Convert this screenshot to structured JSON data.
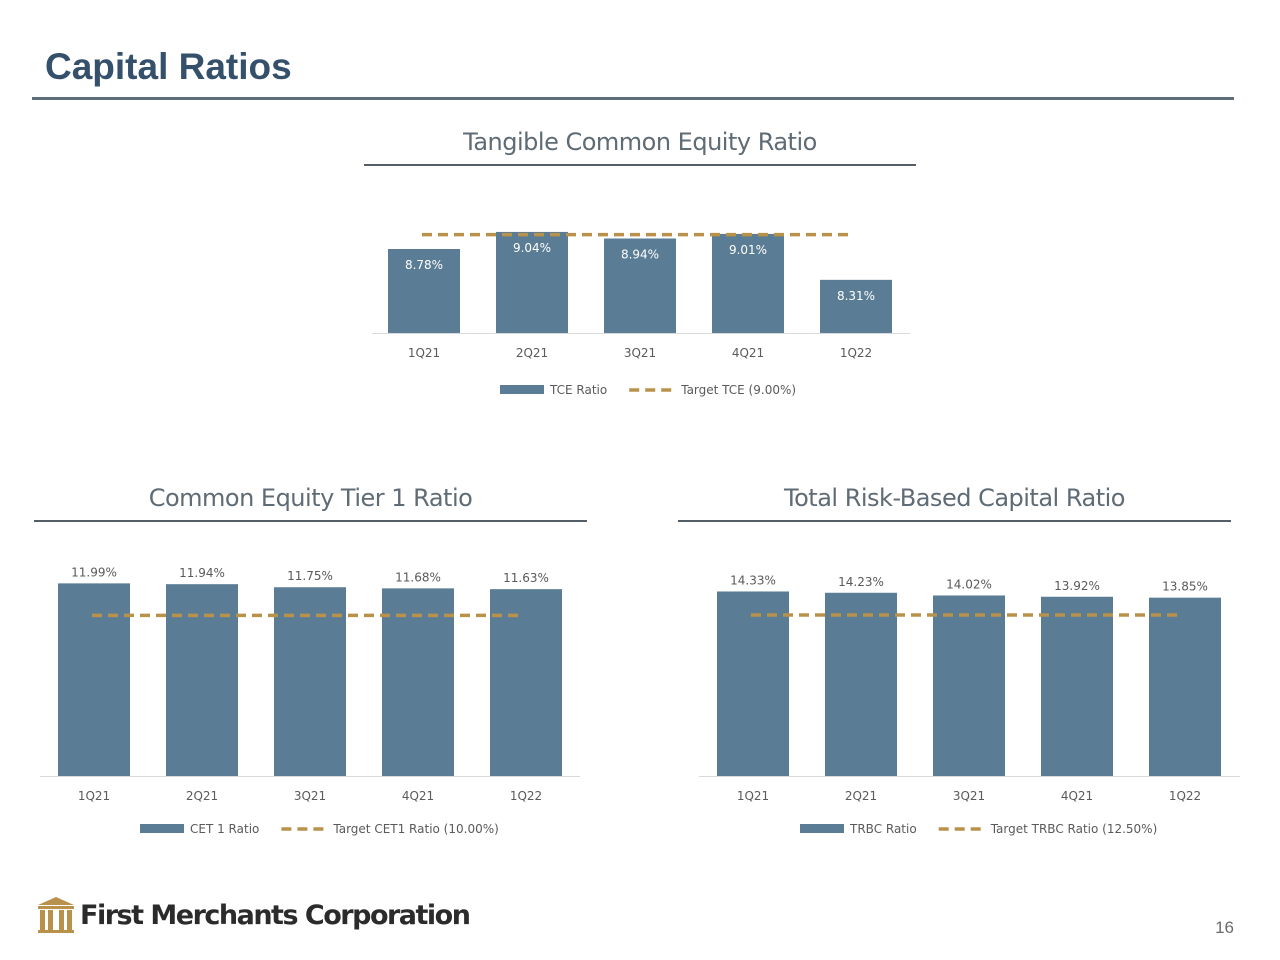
{
  "page": {
    "title": "Capital Ratios",
    "company": "First Merchants Corporation",
    "page_number": "16"
  },
  "colors": {
    "bar": "#5a7d95",
    "target": "#b8924a",
    "title": "#34506b"
  },
  "chart_data": [
    {
      "type": "bar",
      "title": "Tangible Common Equity Ratio",
      "categories": [
        "1Q21",
        "2Q21",
        "3Q21",
        "4Q21",
        "1Q22"
      ],
      "series": [
        {
          "name": "TCE Ratio",
          "values": [
            8.78,
            9.04,
            8.94,
            9.01,
            8.31
          ]
        }
      ],
      "data_labels": [
        "8.78%",
        "9.04%",
        "8.94%",
        "9.01%",
        "8.31%"
      ],
      "target": {
        "name": "Target TCE (9.00%)",
        "value": 9.0
      },
      "ylim": [
        7.5,
        9.1
      ],
      "label_position": "inside-top",
      "legend": "bottom",
      "grid": false
    },
    {
      "type": "bar",
      "title": "Common Equity Tier 1 Ratio",
      "categories": [
        "1Q21",
        "2Q21",
        "3Q21",
        "4Q21",
        "1Q22"
      ],
      "series": [
        {
          "name": "CET 1 Ratio",
          "values": [
            11.99,
            11.94,
            11.75,
            11.68,
            11.63
          ]
        }
      ],
      "data_labels": [
        "11.99%",
        "11.94%",
        "11.75%",
        "11.68%",
        "11.63%"
      ],
      "target": {
        "name": "Target CET1 Ratio (10.00%)",
        "value": 10.0
      },
      "ylim": [
        0,
        12.2
      ],
      "label_position": "above",
      "legend": "bottom",
      "grid": false
    },
    {
      "type": "bar",
      "title": "Total Risk-Based Capital Ratio",
      "categories": [
        "1Q21",
        "2Q21",
        "3Q21",
        "4Q21",
        "1Q22"
      ],
      "series": [
        {
          "name": "TRBC Ratio",
          "values": [
            14.33,
            14.23,
            14.02,
            13.92,
            13.85
          ]
        }
      ],
      "data_labels": [
        "14.33%",
        "14.23%",
        "14.02%",
        "13.92%",
        "13.85%"
      ],
      "target": {
        "name": "Target TRBC Ratio (12.50%)",
        "value": 12.5
      },
      "ylim": [
        0,
        14.6
      ],
      "label_position": "above",
      "legend": "bottom",
      "grid": false
    }
  ]
}
